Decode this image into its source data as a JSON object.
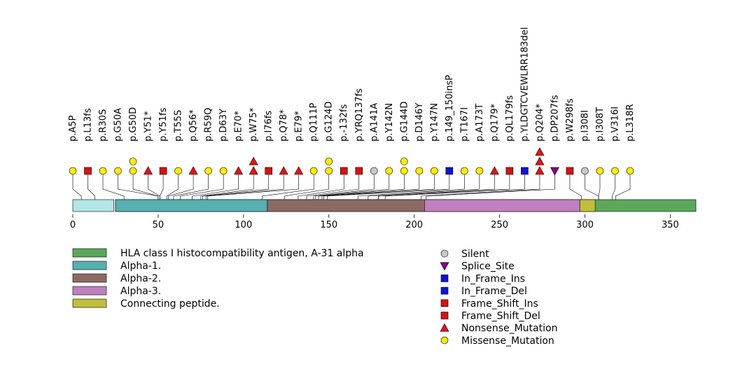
{
  "chart_data": {
    "type": "lollipop",
    "protein_length": 365,
    "x_axis": {
      "min": 0,
      "max": 365,
      "ticks": [
        0,
        50,
        100,
        150,
        200,
        250,
        300,
        350
      ]
    },
    "domains": [
      {
        "name": "HLA class I histocompatibility antigen, A-31 alpha",
        "start": 25,
        "end": 365,
        "color": "#5aa95a"
      },
      {
        "name": "Alpha-1.",
        "start": 25,
        "end": 114,
        "color": "#56b0b0"
      },
      {
        "name": "Alpha-2.",
        "start": 114,
        "end": 206,
        "color": "#8c6a64"
      },
      {
        "name": "Alpha-3.",
        "start": 206,
        "end": 297,
        "color": "#c080c0"
      },
      {
        "name": "Connecting peptide.",
        "start": 297,
        "end": 306,
        "color": "#bfbf3a"
      }
    ],
    "signal_region": {
      "start": 1,
      "end": 24,
      "color": "#b4e6e6"
    },
    "mutation_types": [
      {
        "name": "Silent",
        "shape": "circle",
        "color": "#c8c8c8"
      },
      {
        "name": "Splice_Site",
        "shape": "triangle-down",
        "color": "#8b008b"
      },
      {
        "name": "In_Frame_Ins",
        "shape": "square",
        "color": "#1010dd"
      },
      {
        "name": "In_Frame_Del",
        "shape": "square",
        "color": "#1010dd"
      },
      {
        "name": "Frame_Shift_Ins",
        "shape": "square",
        "color": "#dd1010"
      },
      {
        "name": "Frame_Shift_Del",
        "shape": "square",
        "color": "#dd1010"
      },
      {
        "name": "Nonsense_Mutation",
        "shape": "triangle",
        "color": "#ee1010"
      },
      {
        "name": "Missense_Mutation",
        "shape": "circle",
        "color": "#ffee00"
      }
    ],
    "mutations": [
      {
        "label": "p.A5P",
        "pos": 5,
        "type": "Missense_Mutation",
        "count": 1
      },
      {
        "label": "p.L13fs",
        "pos": 13,
        "type": "Frame_Shift_Del",
        "count": 1
      },
      {
        "label": "p.R30S",
        "pos": 30,
        "type": "Missense_Mutation",
        "count": 1
      },
      {
        "label": "p.G50A",
        "pos": 50,
        "type": "Missense_Mutation",
        "count": 1
      },
      {
        "label": "p.G50D",
        "pos": 50,
        "type": "Missense_Mutation",
        "count": 2
      },
      {
        "label": "p.Y51*",
        "pos": 51,
        "type": "Nonsense_Mutation",
        "count": 1
      },
      {
        "label": "p.Y51fs",
        "pos": 51,
        "type": "Frame_Shift_Del",
        "count": 1
      },
      {
        "label": "p.T55S",
        "pos": 55,
        "type": "Missense_Mutation",
        "count": 1
      },
      {
        "label": "p.Q56*",
        "pos": 56,
        "type": "Nonsense_Mutation",
        "count": 1
      },
      {
        "label": "p.R59Q",
        "pos": 59,
        "type": "Missense_Mutation",
        "count": 1
      },
      {
        "label": "p.D63Y",
        "pos": 63,
        "type": "Missense_Mutation",
        "count": 1
      },
      {
        "label": "p.E70*",
        "pos": 70,
        "type": "Nonsense_Mutation",
        "count": 1
      },
      {
        "label": "p.W75*",
        "pos": 75,
        "type": "Nonsense_Mutation",
        "count": 2
      },
      {
        "label": "p.I76fs",
        "pos": 76,
        "type": "Frame_Shift_Del",
        "count": 1
      },
      {
        "label": "p.Q78*",
        "pos": 78,
        "type": "Nonsense_Mutation",
        "count": 1
      },
      {
        "label": "p.E79*",
        "pos": 79,
        "type": "Nonsense_Mutation",
        "count": 1
      },
      {
        "label": "p.Q111P",
        "pos": 111,
        "type": "Missense_Mutation",
        "count": 1
      },
      {
        "label": "p.G124D",
        "pos": 124,
        "type": "Missense_Mutation",
        "count": 2
      },
      {
        "label": "p.-132fs",
        "pos": 132,
        "type": "Frame_Shift_Del",
        "count": 1
      },
      {
        "label": "p.YRQ137fs",
        "pos": 137,
        "type": "Frame_Shift_Del",
        "count": 1
      },
      {
        "label": "p.A141A",
        "pos": 141,
        "type": "Silent",
        "count": 1
      },
      {
        "label": "p.Y142N",
        "pos": 142,
        "type": "Missense_Mutation",
        "count": 1
      },
      {
        "label": "p.G144D",
        "pos": 144,
        "type": "Missense_Mutation",
        "count": 2
      },
      {
        "label": "p.D146Y",
        "pos": 146,
        "type": "Missense_Mutation",
        "count": 1
      },
      {
        "label": "p.Y147N",
        "pos": 147,
        "type": "Missense_Mutation",
        "count": 1
      },
      {
        "label": "p.149_150insP",
        "pos": 149,
        "type": "In_Frame_Ins",
        "count": 1
      },
      {
        "label": "p.T167I",
        "pos": 167,
        "type": "Missense_Mutation",
        "count": 1
      },
      {
        "label": "p.A173T",
        "pos": 173,
        "type": "Missense_Mutation",
        "count": 1
      },
      {
        "label": "p.Q179*",
        "pos": 179,
        "type": "Nonsense_Mutation",
        "count": 1
      },
      {
        "label": "p.QL179fs",
        "pos": 179,
        "type": "Frame_Shift_Del",
        "count": 1
      },
      {
        "label": "p.YLDGTCVEWLRR183del",
        "pos": 183,
        "type": "In_Frame_Del",
        "count": 1
      },
      {
        "label": "p.Q204*",
        "pos": 204,
        "type": "Nonsense_Mutation",
        "count": 3
      },
      {
        "label": "p.DP207fs",
        "pos": 207,
        "type": "Splice_Site",
        "count": 1
      },
      {
        "label": "p.W298fs",
        "pos": 298,
        "type": "Frame_Shift_Del",
        "count": 1
      },
      {
        "label": "p.I308I",
        "pos": 308,
        "type": "Silent",
        "count": 1
      },
      {
        "label": "p.I308T",
        "pos": 308,
        "type": "Missense_Mutation",
        "count": 1
      },
      {
        "label": "p.V316I",
        "pos": 316,
        "type": "Missense_Mutation",
        "count": 1
      },
      {
        "label": "p.L318R",
        "pos": 318,
        "type": "Missense_Mutation",
        "count": 1
      }
    ]
  }
}
